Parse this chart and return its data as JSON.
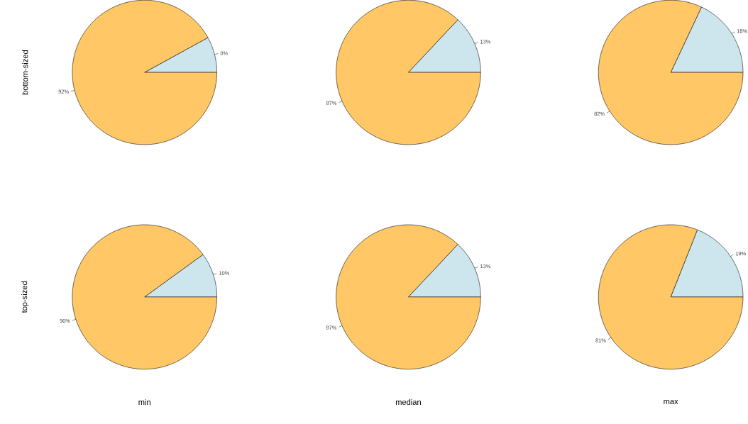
{
  "chart_data": [
    {
      "type": "pie",
      "categories": [
        null,
        null
      ],
      "values": [
        8,
        92
      ],
      "colors": [
        "#cde6ee",
        "#ffc766"
      ],
      "value_labels": [
        "8%",
        "92%"
      ],
      "ylabel": "bottom-sized"
    },
    {
      "type": "pie",
      "categories": [
        null,
        null
      ],
      "values": [
        13,
        87
      ],
      "colors": [
        "#cde6ee",
        "#ffc766"
      ],
      "value_labels": [
        "13%",
        "87%"
      ]
    },
    {
      "type": "pie",
      "categories": [
        null,
        null
      ],
      "values": [
        18,
        82
      ],
      "colors": [
        "#cde6ee",
        "#ffc766"
      ],
      "value_labels": [
        "18%",
        "82%"
      ]
    },
    {
      "type": "pie",
      "categories": [
        null,
        null
      ],
      "values": [
        10,
        90
      ],
      "colors": [
        "#cde6ee",
        "#ffc766"
      ],
      "value_labels": [
        "10%",
        "90%"
      ],
      "ylabel": "top-sized",
      "xlabel": "min"
    },
    {
      "type": "pie",
      "categories": [
        null,
        null
      ],
      "values": [
        13,
        87
      ],
      "colors": [
        "#cde6ee",
        "#ffc766"
      ],
      "value_labels": [
        "13%",
        "87%"
      ],
      "xlabel": "median"
    },
    {
      "type": "pie",
      "categories": [
        null,
        null
      ],
      "values": [
        19,
        81
      ],
      "colors": [
        "#cde6ee",
        "#ffc766"
      ],
      "value_labels": [
        "19%",
        "81%"
      ],
      "xlabel": "max"
    }
  ]
}
